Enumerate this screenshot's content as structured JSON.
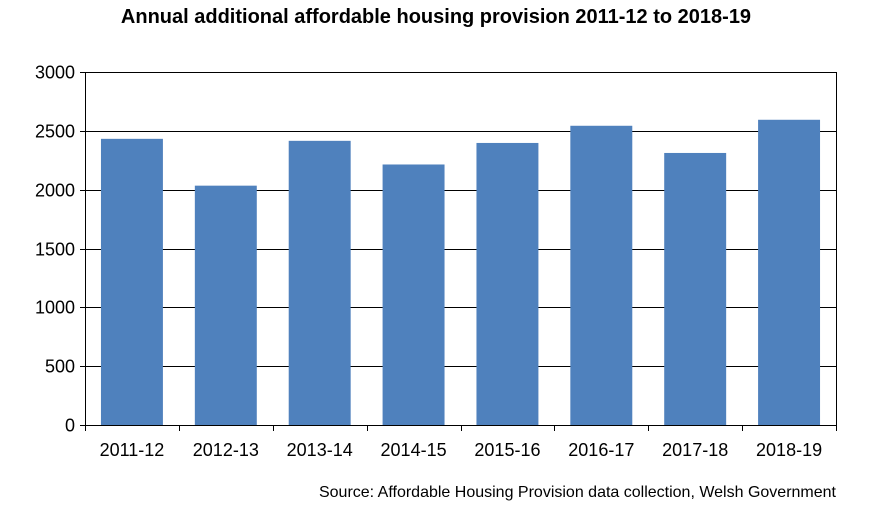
{
  "chart_data": {
    "type": "bar",
    "title": "Annual additional affordable housing provision 2011-12 to 2018-19",
    "source": "Source: Affordable Housing Provision data collection, Welsh Government",
    "categories": [
      "2011-12",
      "2012-13",
      "2013-14",
      "2014-15",
      "2015-16",
      "2016-17",
      "2017-18",
      "2018-19"
    ],
    "values": [
      2432,
      2034,
      2415,
      2214,
      2397,
      2543,
      2312,
      2594
    ],
    "xlabel": "",
    "ylabel": "",
    "ylim": [
      0,
      3000
    ],
    "yticks": [
      0,
      500,
      1000,
      1500,
      2000,
      2500,
      3000
    ],
    "grid": true,
    "legend": "none",
    "bar_color": "#4F81BD"
  }
}
